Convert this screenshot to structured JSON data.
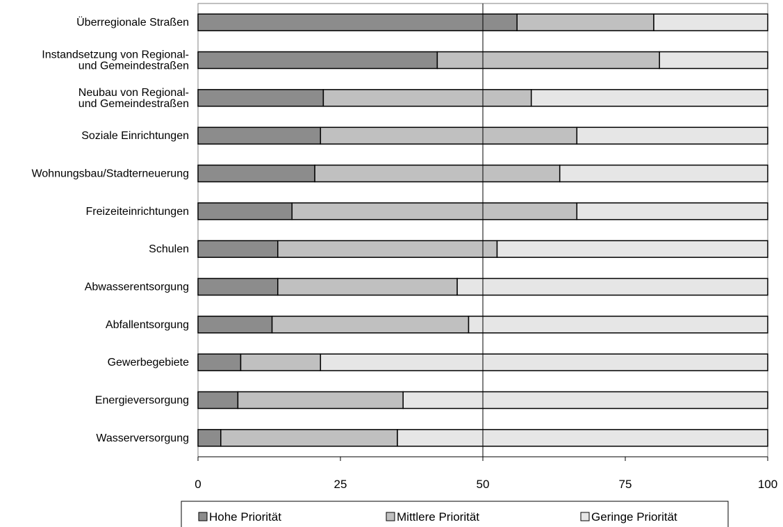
{
  "chart_data": {
    "type": "bar",
    "orientation": "horizontal",
    "stacked": true,
    "categories": [
      [
        "Überregionale Straßen"
      ],
      [
        "Instandsetzung von Regional-",
        "und Gemeindestraßen"
      ],
      [
        "Neubau von Regional-",
        "und Gemeindestraßen"
      ],
      [
        "Soziale Einrichtungen"
      ],
      [
        "Wohnungsbau/Stadterneuerung"
      ],
      [
        "Freizeiteinrichtungen"
      ],
      [
        "Schulen"
      ],
      [
        "Abwasserentsorgung"
      ],
      [
        "Abfallentsorgung"
      ],
      [
        "Gewerbegebiete"
      ],
      [
        "Energieversorgung"
      ],
      [
        "Wasserversorgung"
      ]
    ],
    "series": [
      {
        "name": "Hohe Priorität",
        "color": "#8c8c8c",
        "values": [
          56,
          42,
          22,
          21.5,
          20.5,
          16.5,
          14,
          14,
          13,
          7.5,
          7,
          4
        ]
      },
      {
        "name": "Mittlere Priorität",
        "color": "#c0c0c0",
        "values": [
          24,
          39,
          36.5,
          45,
          43,
          50,
          38.5,
          31.5,
          34.5,
          14,
          29,
          31
        ]
      },
      {
        "name": "Geringe Priorität",
        "color": "#e6e6e6",
        "values": [
          20,
          19,
          41.5,
          33.5,
          36.5,
          33.5,
          47.5,
          54.5,
          52.5,
          78.5,
          64,
          65
        ]
      }
    ],
    "xlim": [
      0,
      100
    ],
    "xticks": [
      0,
      25,
      50,
      75,
      100
    ],
    "reference_line": 50,
    "legend_position": "bottom",
    "title": "",
    "xlabel": "",
    "ylabel": ""
  }
}
